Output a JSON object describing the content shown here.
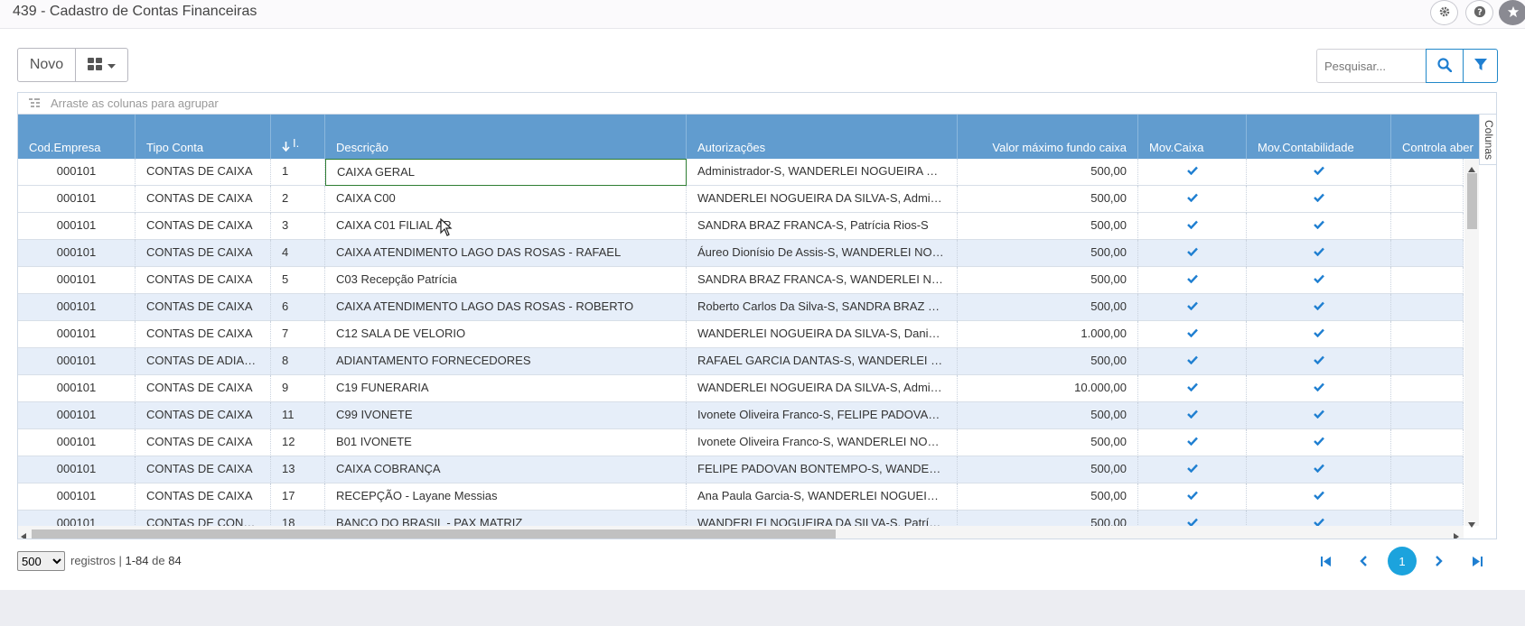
{
  "page": {
    "title": "439 - Cadastro de Contas Financeiras"
  },
  "top_icons": [
    "gear-icon",
    "help-icon",
    "star-icon"
  ],
  "toolbar": {
    "new_label": "Novo",
    "search_placeholder": "Pesquisar..."
  },
  "grid": {
    "group_hint": "Arraste as colunas para agrupar",
    "columns_tab": "Colunas",
    "columns": [
      "Cod.Empresa",
      "Tipo Conta",
      "I.",
      "Descrição",
      "Autorizações",
      "Valor máximo fundo caixa",
      "Mov.Caixa",
      "Mov.Contabilidade",
      "Controla aber"
    ],
    "rows": [
      {
        "empresa": "000101",
        "tipo": "CONTAS DE CAIXA",
        "id": "1",
        "descricao": "CAIXA GERAL",
        "autorizacoes": "Administrador-S, WANDERLEI NOGUEIRA DA SILVA-S",
        "valor": "500,00",
        "mov_caixa": true,
        "mov_contab": true
      },
      {
        "empresa": "000101",
        "tipo": "CONTAS DE CAIXA",
        "id": "2",
        "descricao": "CAIXA C00",
        "autorizacoes": "WANDERLEI NOGUEIRA DA SILVA-S, Administrador-S",
        "valor": "500,00",
        "mov_caixa": true,
        "mov_contab": true
      },
      {
        "empresa": "000101",
        "tipo": "CONTAS DE CAIXA",
        "id": "3",
        "descricao": "CAIXA C01 FILIAL AP",
        "autorizacoes": "SANDRA BRAZ FRANCA-S, Patrícia Rios-S",
        "valor": "500,00",
        "mov_caixa": true,
        "mov_contab": true
      },
      {
        "empresa": "000101",
        "tipo": "CONTAS DE CAIXA",
        "id": "4",
        "descricao": "CAIXA ATENDIMENTO LAGO DAS ROSAS - RAFAEL",
        "autorizacoes": "Áureo Dionísio De Assis-S, WANDERLEI NOGUEIRA-S",
        "valor": "500,00",
        "mov_caixa": true,
        "mov_contab": true
      },
      {
        "empresa": "000101",
        "tipo": "CONTAS DE CAIXA",
        "id": "5",
        "descricao": "C03 Recepção Patrícia",
        "autorizacoes": "SANDRA BRAZ FRANCA-S, WANDERLEI NOGUEIRA-S",
        "valor": "500,00",
        "mov_caixa": true,
        "mov_contab": true
      },
      {
        "empresa": "000101",
        "tipo": "CONTAS DE CAIXA",
        "id": "6",
        "descricao": "CAIXA ATENDIMENTO LAGO DAS ROSAS - ROBERTO",
        "autorizacoes": "Roberto Carlos Da Silva-S, SANDRA BRAZ FRANCA-S",
        "valor": "500,00",
        "mov_caixa": true,
        "mov_contab": true
      },
      {
        "empresa": "000101",
        "tipo": "CONTAS DE CAIXA",
        "id": "7",
        "descricao": "C12 SALA DE VELORIO",
        "autorizacoes": "WANDERLEI NOGUEIRA DA SILVA-S, Daniel-S",
        "valor": "1.000,00",
        "mov_caixa": true,
        "mov_contab": true
      },
      {
        "empresa": "000101",
        "tipo": "CONTAS DE ADIANTAMENTO",
        "id": "8",
        "descricao": "ADIANTAMENTO FORNECEDORES",
        "autorizacoes": "RAFAEL GARCIA DANTAS-S, WANDERLEI NOGUEIRA-S",
        "valor": "500,00",
        "mov_caixa": true,
        "mov_contab": true
      },
      {
        "empresa": "000101",
        "tipo": "CONTAS DE CAIXA",
        "id": "9",
        "descricao": "C19 FUNERARIA",
        "autorizacoes": "WANDERLEI NOGUEIRA DA SILVA-S, Administrador-S",
        "valor": "10.000,00",
        "mov_caixa": true,
        "mov_contab": true
      },
      {
        "empresa": "000101",
        "tipo": "CONTAS DE CAIXA",
        "id": "11",
        "descricao": "C99 IVONETE",
        "autorizacoes": "Ivonete Oliveira Franco-S, FELIPE PADOVAN BONTEMPO-S",
        "valor": "500,00",
        "mov_caixa": true,
        "mov_contab": true
      },
      {
        "empresa": "000101",
        "tipo": "CONTAS DE CAIXA",
        "id": "12",
        "descricao": "B01 IVONETE",
        "autorizacoes": "Ivonete Oliveira Franco-S, WANDERLEI NOGUEIRA-S",
        "valor": "500,00",
        "mov_caixa": true,
        "mov_contab": true
      },
      {
        "empresa": "000101",
        "tipo": "CONTAS DE CAIXA",
        "id": "13",
        "descricao": "CAIXA COBRANÇA",
        "autorizacoes": "FELIPE PADOVAN BONTEMPO-S, WANDERLEI NOGUEIRA-S",
        "valor": "500,00",
        "mov_caixa": true,
        "mov_contab": true
      },
      {
        "empresa": "000101",
        "tipo": "CONTAS DE CAIXA",
        "id": "17",
        "descricao": "RECEPÇÃO - Layane Messias",
        "autorizacoes": "Ana Paula Garcia-S, WANDERLEI NOGUEIRA-S",
        "valor": "500,00",
        "mov_caixa": true,
        "mov_contab": true
      },
      {
        "empresa": "000101",
        "tipo": "CONTAS DE CONTA CORRENTE",
        "id": "18",
        "descricao": "BANCO DO BRASIL - PAX MATRIZ",
        "autorizacoes": "WANDERLEI NOGUEIRA DA SILVA-S, Patrícia Rios-S",
        "valor": "500,00",
        "mov_caixa": true,
        "mov_contab": true
      }
    ]
  },
  "footer": {
    "page_size": "500",
    "page_size_options": [
      "500"
    ],
    "records_label": "registros",
    "range": "1-84",
    "of_label": "de",
    "total": "84",
    "current_page": "1"
  },
  "colors": {
    "header_bg": "#619ccf",
    "accent": "#1ca3dd",
    "check": "#1f7fd1",
    "alt_row": "#e6eef9"
  }
}
